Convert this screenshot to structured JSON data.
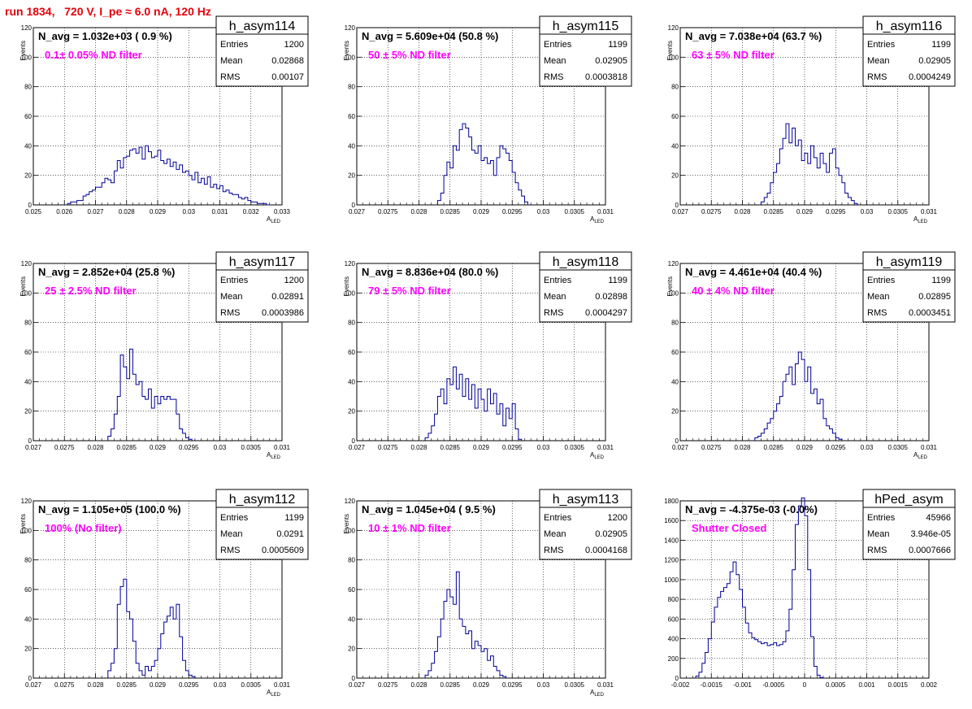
{
  "header": {
    "title": "run 1834,   720 V, I_pe ≈ 6.0 nA, 120 Hz"
  },
  "colors": {
    "title": "#e8000b",
    "annotation": "#ff00ff",
    "histogram": "#000099",
    "grid": "#000000"
  },
  "chart_data": [
    {
      "type": "histogram",
      "name": "h_asym114",
      "ylabel": "Events",
      "xlabel": "A_LED",
      "xlim": [
        0.025,
        0.033
      ],
      "ylim": [
        0,
        120
      ],
      "xticks": [
        "0.025",
        "0.026",
        "0.027",
        "0.028",
        "0.029",
        "0.03",
        "0.031",
        "0.032",
        "0.033"
      ],
      "yticks": [
        "0",
        "20",
        "40",
        "60",
        "80",
        "100",
        "120"
      ],
      "grid": true,
      "naverage": "N_avg = 1.032e+03 ( 0.9 %)",
      "annotation": "0.1± 0.05% ND filter",
      "stats": {
        "entries": "1200",
        "mean": "0.02868",
        "rms": "0.00107"
      },
      "bins": {
        "start": 0.0261,
        "width": 0.0001,
        "values": [
          1,
          2,
          2,
          3,
          3,
          6,
          7,
          9,
          10,
          12,
          12,
          15,
          18,
          17,
          15,
          23,
          30,
          25,
          32,
          33,
          37,
          38,
          35,
          39,
          31,
          40,
          36,
          32,
          33,
          37,
          30,
          28,
          31,
          26,
          29,
          24,
          27,
          22,
          23,
          20,
          17,
          22,
          15,
          18,
          14,
          19,
          12,
          14,
          11,
          13,
          9,
          10,
          8,
          7,
          7,
          5,
          4,
          5,
          3,
          2,
          2,
          1,
          1,
          1,
          0
        ]
      }
    },
    {
      "type": "histogram",
      "name": "h_asym115",
      "ylabel": "Events",
      "xlabel": "A_LED",
      "xlim": [
        0.027,
        0.031
      ],
      "ylim": [
        0,
        120
      ],
      "xticks": [
        "0.027",
        "0.0275",
        "0.028",
        "0.0285",
        "0.029",
        "0.0295",
        "0.03",
        "0.0305",
        "0.031"
      ],
      "yticks": [
        "0",
        "20",
        "40",
        "60",
        "80",
        "100",
        "120"
      ],
      "grid": true,
      "naverage": "N_avg = 5.609e+04 (50.8 %)",
      "annotation": "50 ± 5% ND filter",
      "stats": {
        "entries": "1199",
        "mean": "0.02905",
        "rms": "0.0003818"
      },
      "bins": {
        "start": 0.0283,
        "width": 5e-05,
        "values": [
          3,
          8,
          20,
          29,
          25,
          40,
          37,
          51,
          55,
          52,
          46,
          37,
          35,
          40,
          30,
          32,
          28,
          30,
          20,
          32,
          40,
          38,
          35,
          30,
          22,
          15,
          10,
          6,
          2
        ]
      }
    },
    {
      "type": "histogram",
      "name": "h_asym116",
      "ylabel": "Events",
      "xlabel": "A_LED",
      "xlim": [
        0.027,
        0.031
      ],
      "ylim": [
        0,
        120
      ],
      "xticks": [
        "0.027",
        "0.0275",
        "0.028",
        "0.0285",
        "0.029",
        "0.0295",
        "0.03",
        "0.0305",
        "0.031"
      ],
      "yticks": [
        "0",
        "20",
        "40",
        "60",
        "80",
        "100",
        "120"
      ],
      "grid": true,
      "naverage": "N_avg = 7.038e+04 (63.7 %)",
      "annotation": "63 ± 5% ND filter",
      "stats": {
        "entries": "1199",
        "mean": "0.02905",
        "rms": "0.0004249"
      },
      "bins": {
        "start": 0.0283,
        "width": 5e-05,
        "values": [
          2,
          5,
          8,
          15,
          22,
          28,
          38,
          45,
          55,
          42,
          52,
          40,
          44,
          30,
          35,
          28,
          40,
          32,
          25,
          35,
          28,
          22,
          35,
          38,
          25,
          20,
          15,
          8,
          5,
          3,
          1
        ]
      }
    },
    {
      "type": "histogram",
      "name": "h_asym117",
      "ylabel": "Events",
      "xlabel": "A_LED",
      "xlim": [
        0.027,
        0.031
      ],
      "ylim": [
        0,
        120
      ],
      "xticks": [
        "0.027",
        "0.0275",
        "0.028",
        "0.0285",
        "0.029",
        "0.0295",
        "0.03",
        "0.0305",
        "0.031"
      ],
      "yticks": [
        "0",
        "20",
        "40",
        "60",
        "80",
        "100",
        "120"
      ],
      "grid": true,
      "naverage": "N_avg = 2.852e+04 (25.8 %)",
      "annotation": "25 ± 2.5% ND filter",
      "stats": {
        "entries": "1200",
        "mean": "0.02891",
        "rms": "0.0003986"
      },
      "bins": {
        "start": 0.0282,
        "width": 5e-05,
        "values": [
          3,
          8,
          18,
          30,
          58,
          50,
          42,
          62,
          45,
          38,
          40,
          30,
          28,
          35,
          22,
          30,
          25,
          30,
          28,
          30,
          28,
          28,
          18,
          8,
          5,
          2,
          1
        ]
      }
    },
    {
      "type": "histogram",
      "name": "h_asym118",
      "ylabel": "Events",
      "xlabel": "A_LED",
      "xlim": [
        0.027,
        0.031
      ],
      "ylim": [
        0,
        120
      ],
      "xticks": [
        "0.027",
        "0.0275",
        "0.028",
        "0.0285",
        "0.029",
        "0.0295",
        "0.03",
        "0.0305",
        "0.031"
      ],
      "yticks": [
        "0",
        "20",
        "40",
        "60",
        "80",
        "100",
        "120"
      ],
      "grid": true,
      "naverage": "N_avg = 8.836e+04 (80.0 %)",
      "annotation": "79 ± 5% ND filter",
      "stats": {
        "entries": "1199",
        "mean": "0.02898",
        "rms": "0.0004297"
      },
      "bins": {
        "start": 0.0281,
        "width": 5e-05,
        "values": [
          2,
          5,
          10,
          18,
          30,
          35,
          25,
          42,
          38,
          50,
          35,
          45,
          30,
          42,
          28,
          38,
          22,
          35,
          28,
          20,
          35,
          25,
          32,
          18,
          25,
          10,
          22,
          15,
          25,
          8,
          1
        ]
      }
    },
    {
      "type": "histogram",
      "name": "h_asym119",
      "ylabel": "Events",
      "xlabel": "A_LED",
      "xlim": [
        0.027,
        0.031
      ],
      "ylim": [
        0,
        120
      ],
      "xticks": [
        "0.027",
        "0.0275",
        "0.028",
        "0.0285",
        "0.029",
        "0.0295",
        "0.03",
        "0.0305",
        "0.031"
      ],
      "yticks": [
        "0",
        "20",
        "40",
        "60",
        "80",
        "100",
        "120"
      ],
      "grid": true,
      "naverage": "N_avg = 4.461e+04 (40.4 %)",
      "annotation": "40 ± 4% ND filter",
      "stats": {
        "entries": "1199",
        "mean": "0.02895",
        "rms": "0.0003451"
      },
      "bins": {
        "start": 0.0282,
        "width": 5e-05,
        "values": [
          2,
          3,
          5,
          8,
          12,
          15,
          20,
          25,
          30,
          40,
          45,
          50,
          38,
          52,
          60,
          55,
          40,
          50,
          32,
          35,
          25,
          28,
          15,
          10,
          8,
          5,
          2,
          1
        ]
      }
    },
    {
      "type": "histogram",
      "name": "h_asym112",
      "ylabel": "Events",
      "xlabel": "A_LED",
      "xlim": [
        0.027,
        0.031
      ],
      "ylim": [
        0,
        120
      ],
      "xticks": [
        "0.027",
        "0.0275",
        "0.028",
        "0.0285",
        "0.029",
        "0.0295",
        "0.03",
        "0.0305",
        "0.031"
      ],
      "yticks": [
        "0",
        "20",
        "40",
        "60",
        "80",
        "100",
        "120"
      ],
      "grid": true,
      "naverage": "N_avg = 1.105e+05 (100.0 %)",
      "annotation": "100% (No filter)",
      "stats": {
        "entries": "1199",
        "mean": "0.0291",
        "rms": "0.0005609"
      },
      "bins": {
        "start": 0.0282,
        "width": 5e-05,
        "values": [
          5,
          10,
          20,
          50,
          62,
          67,
          45,
          40,
          25,
          10,
          5,
          2,
          8,
          5,
          8,
          12,
          20,
          30,
          38,
          42,
          48,
          40,
          50,
          28,
          12,
          5,
          2,
          1
        ]
      }
    },
    {
      "type": "histogram",
      "name": "h_asym113",
      "ylabel": "Events",
      "xlabel": "A_LED",
      "xlim": [
        0.027,
        0.031
      ],
      "ylim": [
        0,
        120
      ],
      "xticks": [
        "0.027",
        "0.0275",
        "0.028",
        "0.0285",
        "0.029",
        "0.0295",
        "0.03",
        "0.0305",
        "0.031"
      ],
      "yticks": [
        "0",
        "20",
        "40",
        "60",
        "80",
        "100",
        "120"
      ],
      "grid": true,
      "naverage": "N_avg = 1.045e+04 ( 9.5 %)",
      "annotation": "10 ± 1% ND filter",
      "stats": {
        "entries": "1200",
        "mean": "0.02905",
        "rms": "0.0004168"
      },
      "bins": {
        "start": 0.0281,
        "width": 5e-05,
        "values": [
          2,
          5,
          10,
          18,
          28,
          40,
          52,
          60,
          55,
          50,
          72,
          40,
          35,
          30,
          32,
          20,
          25,
          22,
          18,
          20,
          12,
          15,
          8,
          5,
          2,
          1
        ]
      }
    },
    {
      "type": "histogram",
      "name": "hPed_asym",
      "ylabel": "",
      "xlabel": "",
      "xlim": [
        -0.002,
        0.002
      ],
      "ylim": [
        0,
        1800
      ],
      "xticks": [
        "-0.002",
        "-0.0015",
        "-0.001",
        "-0.0005",
        "0",
        "0.0005",
        "0.001",
        "0.0015",
        "0.002"
      ],
      "yticks": [
        "0",
        "200",
        "400",
        "600",
        "800",
        "1000",
        "1200",
        "1400",
        "1600",
        "1800"
      ],
      "grid": true,
      "naverage": "N_avg = -4.375e-03 (-0.0%)",
      "annotation": "Shutter Closed",
      "stats": {
        "entries": "45966",
        "mean": "3.946e-05",
        "rms": "0.0007666"
      },
      "bins": {
        "start": -0.00175,
        "width": 5e-05,
        "values": [
          20,
          60,
          150,
          260,
          400,
          570,
          720,
          820,
          880,
          920,
          960,
          1080,
          1180,
          1050,
          900,
          720,
          560,
          460,
          410,
          390,
          370,
          350,
          360,
          330,
          340,
          360,
          330,
          340,
          370,
          480,
          700,
          1100,
          1560,
          1750,
          1830,
          1650,
          1100,
          420,
          120,
          30,
          5
        ]
      }
    }
  ],
  "stats_labels": {
    "entries": "Entries",
    "mean": "Mean",
    "rms": "RMS"
  }
}
